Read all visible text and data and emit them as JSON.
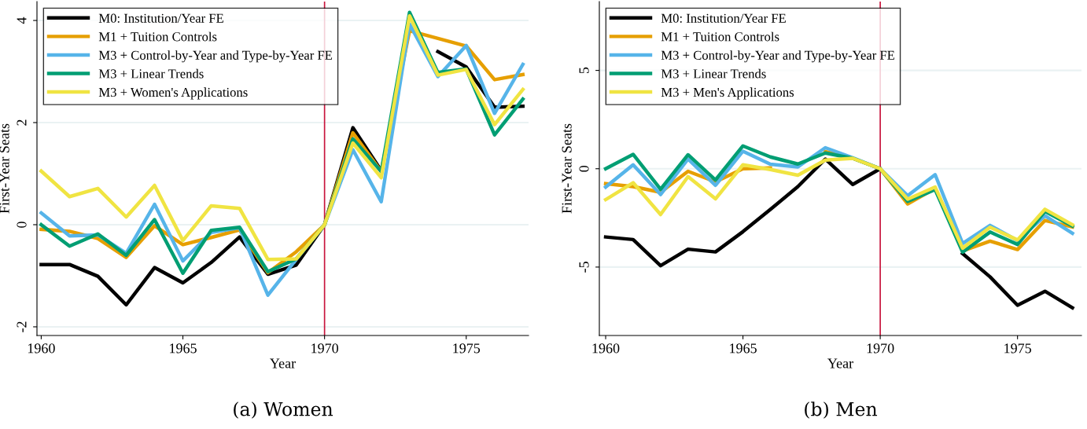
{
  "chart_data": [
    {
      "type": "line",
      "title": "(a) Women",
      "xlabel": "Year",
      "ylabel": "First-Year Seats",
      "x": [
        1960,
        1961,
        1962,
        1963,
        1964,
        1965,
        1966,
        1967,
        1968,
        1969,
        1970,
        1971,
        1972,
        1973,
        1974,
        1975,
        1976,
        1977
      ],
      "xlim": [
        1959.85,
        1977.2
      ],
      "xticks": [
        1960,
        1965,
        1970,
        1975
      ],
      "ylim": [
        -2.17,
        4.37
      ],
      "yticks": [
        {
          "value": -2,
          "label": "-2"
        },
        0,
        2,
        4
      ],
      "grid": "y",
      "legend": "top left",
      "marker": "none",
      "line_style": "solid",
      "ref_lines": [
        {
          "axis": "x",
          "value": 1970,
          "color": "#c8143c"
        }
      ],
      "series": [
        {
          "name": "M0: Institution/Year FE",
          "color": "#000000",
          "values": [
            -0.78,
            -0.78,
            -1.01,
            -1.57,
            -0.84,
            -1.14,
            -0.74,
            -0.24,
            -0.97,
            -0.79,
            0,
            1.9,
            1.06,
            null,
            3.39,
            3.09,
            2.3,
            2.32
          ]
        },
        {
          "name": "M1 + Tuition Controls",
          "color": "#e69f00",
          "values": [
            -0.09,
            -0.13,
            -0.27,
            -0.64,
            -0.02,
            -0.39,
            -0.25,
            -0.1,
            -0.94,
            -0.53,
            0,
            1.8,
            1.04,
            3.8,
            3.65,
            3.5,
            2.84,
            2.94
          ]
        },
        {
          "name": "M3 + Control-by-Year and Type-by-Year FE",
          "color": "#56b4e9",
          "values": [
            0.23,
            -0.22,
            -0.2,
            -0.56,
            0.4,
            -0.71,
            -0.15,
            -0.06,
            -1.38,
            -0.68,
            0,
            1.47,
            0.45,
            3.93,
            2.9,
            3.51,
            2.18,
            3.14
          ]
        },
        {
          "name": "M3 + Linear Trends",
          "color": "#009e73",
          "values": [
            0,
            -0.42,
            -0.18,
            -0.6,
            0.1,
            -0.95,
            -0.11,
            -0.05,
            -0.92,
            -0.67,
            0,
            1.68,
            1.04,
            4.16,
            2.98,
            3.05,
            1.76,
            2.46
          ]
        },
        {
          "name": "M3 + Women's Applications",
          "color": "#f0e442",
          "values": [
            1.05,
            0.55,
            0.71,
            0.15,
            0.77,
            -0.31,
            0.37,
            0.32,
            -0.68,
            -0.67,
            0,
            1.6,
            0.92,
            4.09,
            2.93,
            3.04,
            1.96,
            2.65
          ]
        }
      ]
    },
    {
      "type": "line",
      "title": "(b) Men",
      "xlabel": "Year",
      "ylabel": "First-Year Seats",
      "x": [
        1960,
        1961,
        1962,
        1963,
        1964,
        1965,
        1966,
        1967,
        1968,
        1969,
        1970,
        1971,
        1972,
        1973,
        1974,
        1975,
        1976,
        1977
      ],
      "xlim": [
        1959.77,
        1977.33
      ],
      "xticks": [
        1960,
        1965,
        1970,
        1975
      ],
      "ylim": [
        -8.48,
        8.5
      ],
      "yticks": [
        {
          "value": -5,
          "label": "-5"
        },
        0,
        5
      ],
      "grid": "y",
      "legend": "top left",
      "marker": "none",
      "line_style": "solid",
      "ref_lines": [
        {
          "axis": "x",
          "value": 1970,
          "color": "#c8143c"
        }
      ],
      "series": [
        {
          "name": "M0: Institution/Year FE",
          "color": "#000000",
          "values": [
            -3.47,
            -3.6,
            -4.93,
            -4.09,
            -4.23,
            -3.2,
            -2.07,
            -0.91,
            0.49,
            -0.8,
            0,
            null,
            null,
            -4.31,
            -5.5,
            -6.94,
            -6.23,
            -7.07
          ]
        },
        {
          "name": "M1 + Tuition Controls",
          "color": "#e69f00",
          "values": [
            -0.76,
            -0.91,
            -1.2,
            -0.13,
            -0.67,
            0,
            0.04,
            null,
            0.87,
            0.53,
            0,
            -1.79,
            -1.0,
            -4.18,
            -3.68,
            -4.11,
            -2.63,
            -2.96
          ]
        },
        {
          "name": "M3 + Control-by-Year and Type-by-Year FE",
          "color": "#56b4e9",
          "values": [
            -0.93,
            0.2,
            -1.31,
            0.49,
            -0.84,
            0.89,
            0.23,
            0.09,
            1.07,
            0.56,
            0,
            -1.37,
            -0.3,
            -3.8,
            -2.88,
            -3.65,
            -2.39,
            -3.28
          ]
        },
        {
          "name": "M3 + Linear Trends",
          "color": "#009e73",
          "values": [
            0,
            0.73,
            -1.04,
            0.71,
            -0.57,
            1.16,
            0.6,
            0.24,
            0.8,
            0.53,
            0,
            -1.66,
            -1.06,
            -4.24,
            -3.22,
            -3.85,
            -2.17,
            -2.92
          ]
        },
        {
          "name": "M3 + Men's Applications",
          "color": "#f0e442",
          "values": [
            -1.57,
            -0.71,
            -2.33,
            -0.4,
            -1.53,
            0.2,
            -0.04,
            -0.33,
            0.44,
            0.53,
            0,
            -1.55,
            -0.93,
            -4.04,
            -2.98,
            -3.62,
            -2.06,
            -2.85
          ]
        }
      ]
    }
  ]
}
